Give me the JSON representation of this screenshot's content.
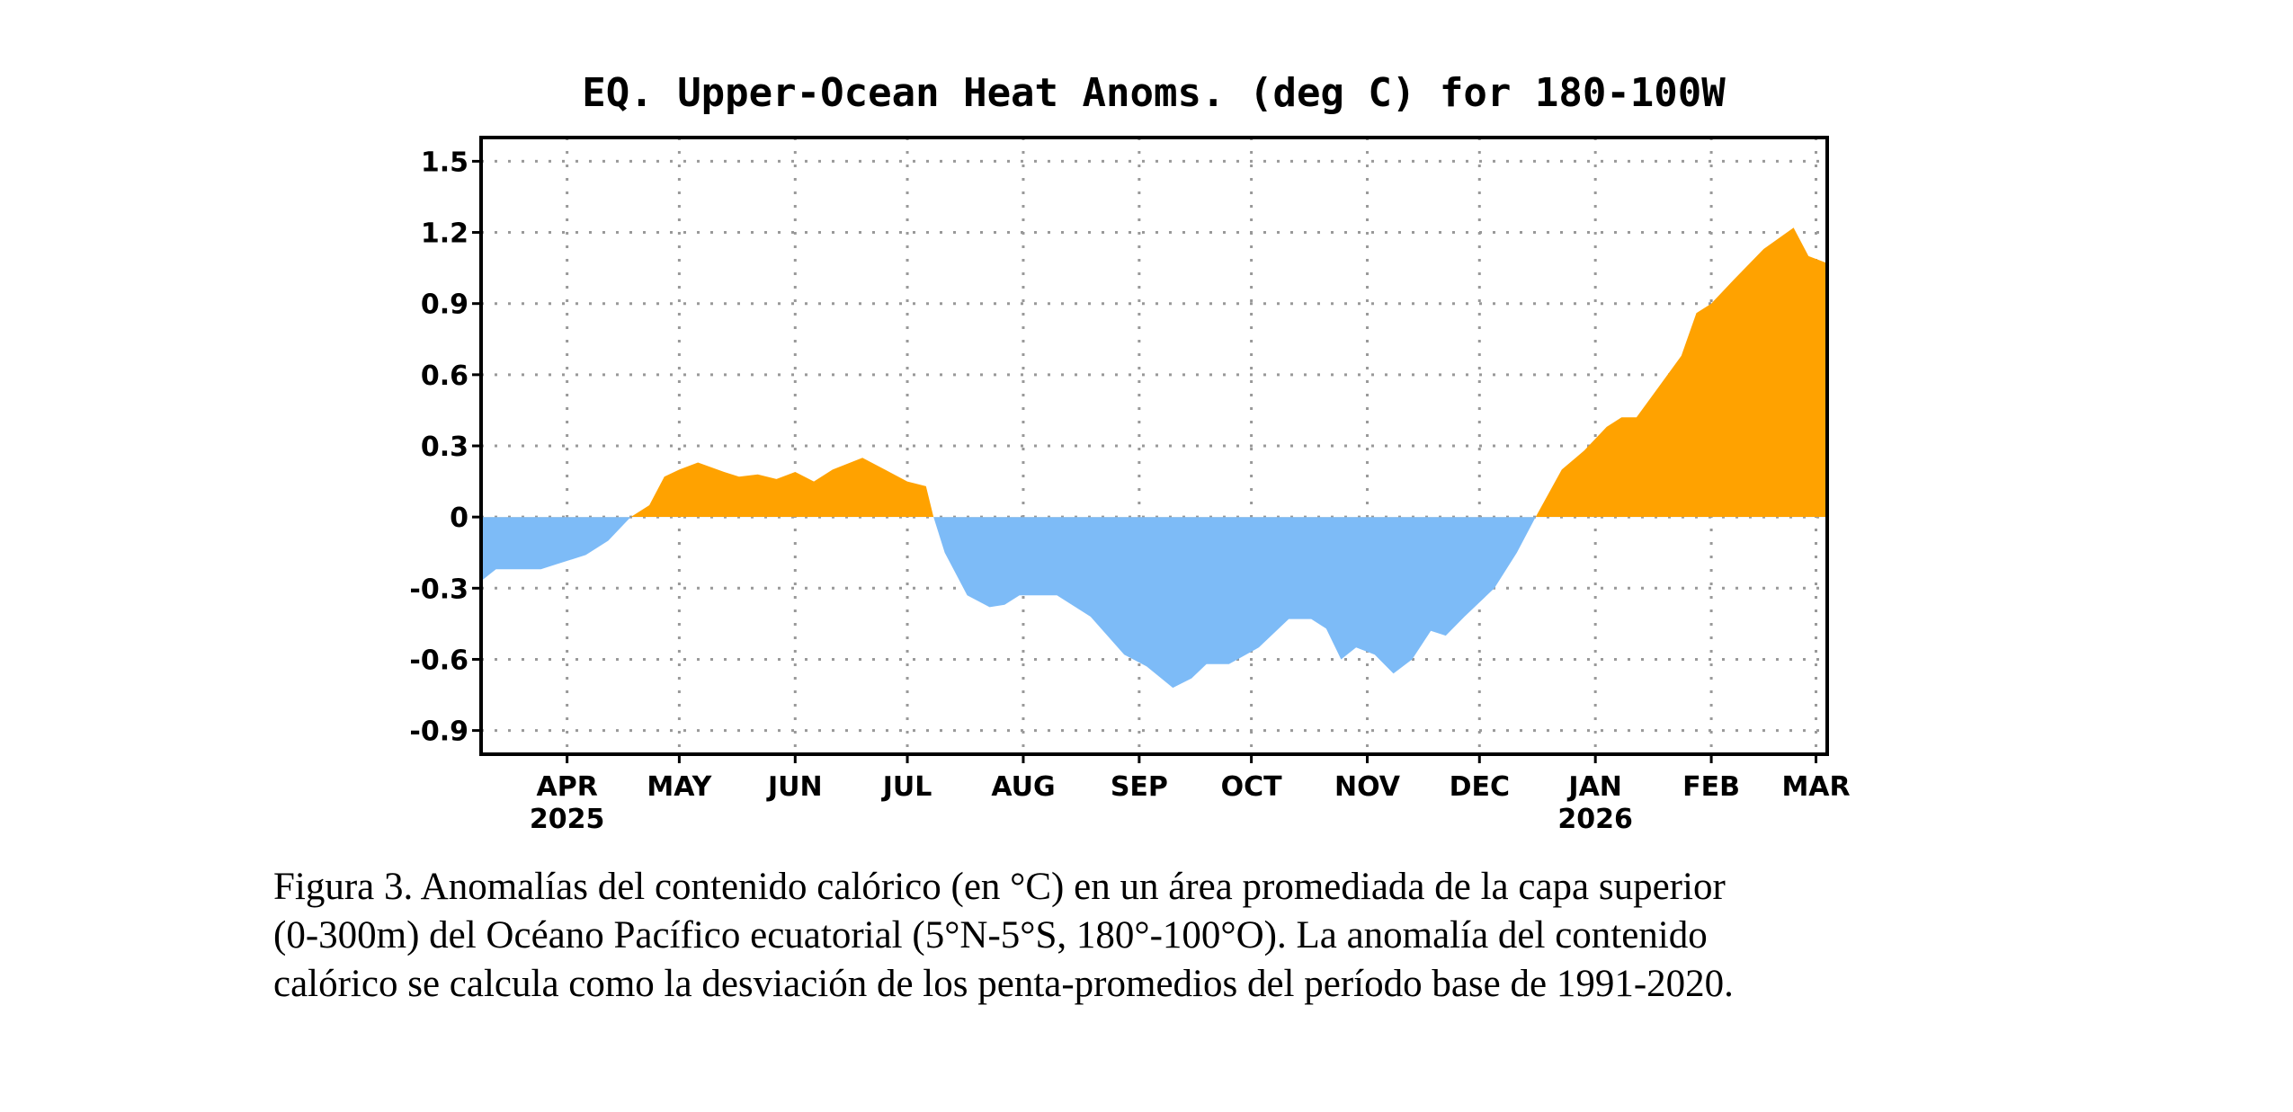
{
  "chart_data": {
    "type": "area",
    "title": "EQ. Upper-Ocean Heat Anoms. (deg C) for 180-100W",
    "xlabel": "",
    "ylabel": "",
    "x_units": "days since 2025-04-01",
    "xlim": [
      -23,
      337
    ],
    "ylim": [
      -1.0,
      1.6
    ],
    "yticks": [
      1.5,
      1.2,
      0.9,
      0.6,
      0.3,
      0,
      -0.3,
      -0.6,
      -0.9
    ],
    "ytick_labels": [
      "1.5",
      "1.2",
      "0.9",
      "0.6",
      "0.3",
      "0",
      "-0.3",
      "-0.6",
      "-0.9"
    ],
    "xticks": [
      {
        "day": 0,
        "label": "APR",
        "year": "2025"
      },
      {
        "day": 30,
        "label": "MAY"
      },
      {
        "day": 61,
        "label": "JUN"
      },
      {
        "day": 91,
        "label": "JUL"
      },
      {
        "day": 122,
        "label": "AUG"
      },
      {
        "day": 153,
        "label": "SEP"
      },
      {
        "day": 183,
        "label": "OCT"
      },
      {
        "day": 214,
        "label": "NOV"
      },
      {
        "day": 244,
        "label": "DEC"
      },
      {
        "day": 275,
        "label": "JAN",
        "year": "2026"
      },
      {
        "day": 306,
        "label": "FEB"
      },
      {
        "day": 334,
        "label": "MAR"
      }
    ],
    "grid": true,
    "positive_color": "#FFA200",
    "negative_color": "#7DBBF7",
    "x": [
      -23,
      -19,
      -7,
      -3,
      5,
      11,
      17,
      22,
      26,
      30,
      35,
      42,
      46,
      51,
      56,
      61,
      66,
      71,
      79,
      85,
      91,
      96,
      98,
      101,
      107,
      113,
      117,
      121,
      131,
      140,
      149,
      155,
      162,
      167,
      171,
      177,
      185,
      193,
      199,
      203,
      207,
      211,
      216,
      221,
      226,
      231,
      235,
      240,
      248,
      254,
      259,
      266,
      272,
      278,
      282,
      286,
      292,
      298,
      302,
      306,
      312,
      320,
      328,
      332,
      337
    ],
    "y": [
      -0.27,
      -0.22,
      -0.22,
      -0.2,
      -0.16,
      -0.1,
      0,
      0.05,
      0.17,
      0.2,
      0.23,
      0.19,
      0.17,
      0.18,
      0.16,
      0.19,
      0.15,
      0.2,
      0.25,
      0.2,
      0.15,
      0.13,
      0.0,
      -0.15,
      -0.33,
      -0.38,
      -0.37,
      -0.33,
      -0.33,
      -0.42,
      -0.58,
      -0.63,
      -0.72,
      -0.68,
      -0.62,
      -0.62,
      -0.55,
      -0.43,
      -0.43,
      -0.47,
      -0.6,
      -0.55,
      -0.58,
      -0.66,
      -0.6,
      -0.48,
      -0.5,
      -0.42,
      -0.3,
      -0.15,
      0,
      0.2,
      0.28,
      0.38,
      0.42,
      0.42,
      0.55,
      0.68,
      0.86,
      0.9,
      1.0,
      1.13,
      1.22,
      1.1,
      1.07
    ]
  },
  "caption": {
    "lines": [
      "Figura 3. Anomalías del contenido calórico (en °C) en un área promediada de la capa superior",
      "(0-300m) del Océano Pacífico ecuatorial (5°N-5°S, 180°-100°O). La anomalía del contenido",
      "calórico se calcula como la desviación de los penta-promedios del período base de 1991-2020."
    ]
  }
}
